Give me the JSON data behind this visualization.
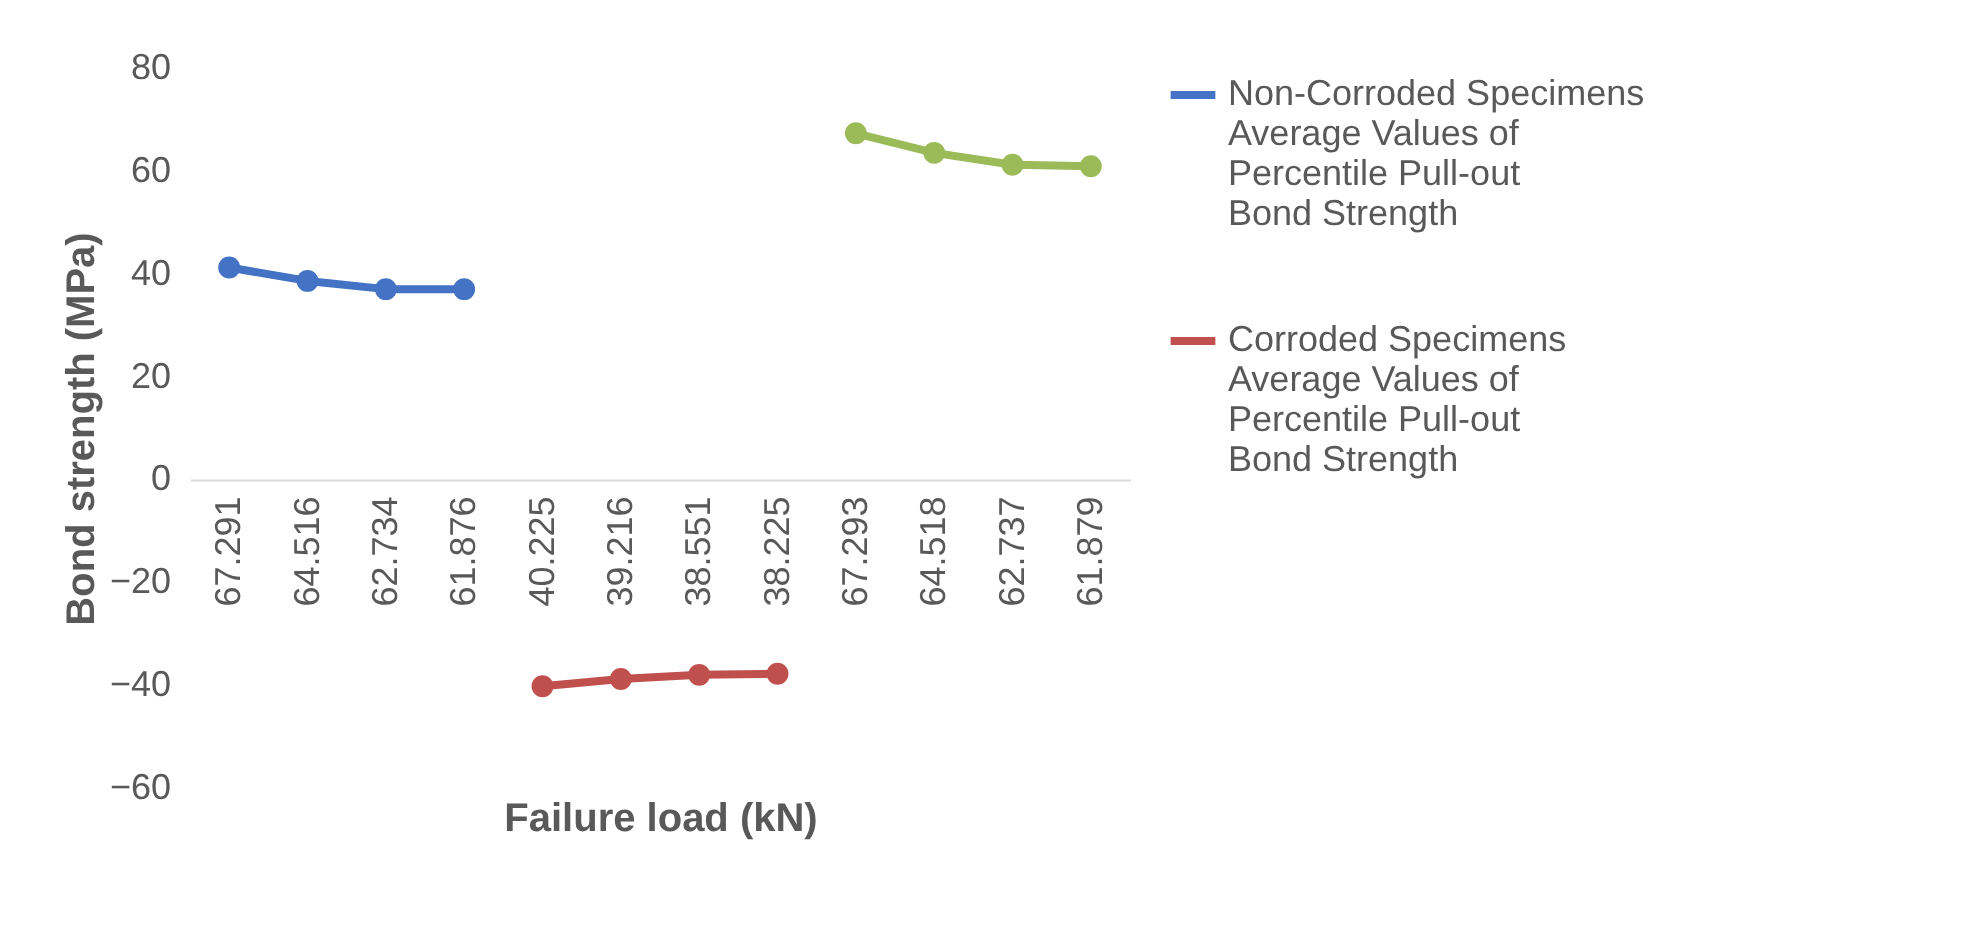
{
  "chart_data": {
    "type": "line",
    "xlabel": "Failure load (kN)",
    "ylabel": "Bond strength (MPa)",
    "categories": [
      "67.291",
      "64.516",
      "62.734",
      "61.876",
      "40.225",
      "39.216",
      "38.551",
      "38.225",
      "67.293",
      "64.518",
      "62.737",
      "61.879"
    ],
    "series": [
      {
        "name": "Non-Corroded Specimens Average Values of  Percentile Pull-out Bond Strength",
        "color": "#4472c4",
        "values": [
          41.2,
          38.6,
          37.0,
          37.0,
          null,
          null,
          null,
          null,
          null,
          null,
          null,
          null
        ]
      },
      {
        "name": "Corroded Specimens Average Values of Percentile Pull-out Bond Strength",
        "color": "#c0504d",
        "values": [
          null,
          null,
          null,
          null,
          -40.2,
          -38.8,
          -38.0,
          -37.8,
          null,
          null,
          null,
          null
        ]
      },
      {
        "color": "#9bbb59",
        "values": [
          null,
          null,
          null,
          null,
          null,
          null,
          null,
          null,
          67.3,
          63.5,
          61.2,
          60.9
        ]
      }
    ],
    "ylim": [
      -60,
      80
    ],
    "yticks": [
      -60,
      -40,
      -20,
      0,
      20,
      40,
      60,
      80
    ],
    "marker": "circle",
    "line_style": "solid",
    "grid": false,
    "legend": "right"
  }
}
